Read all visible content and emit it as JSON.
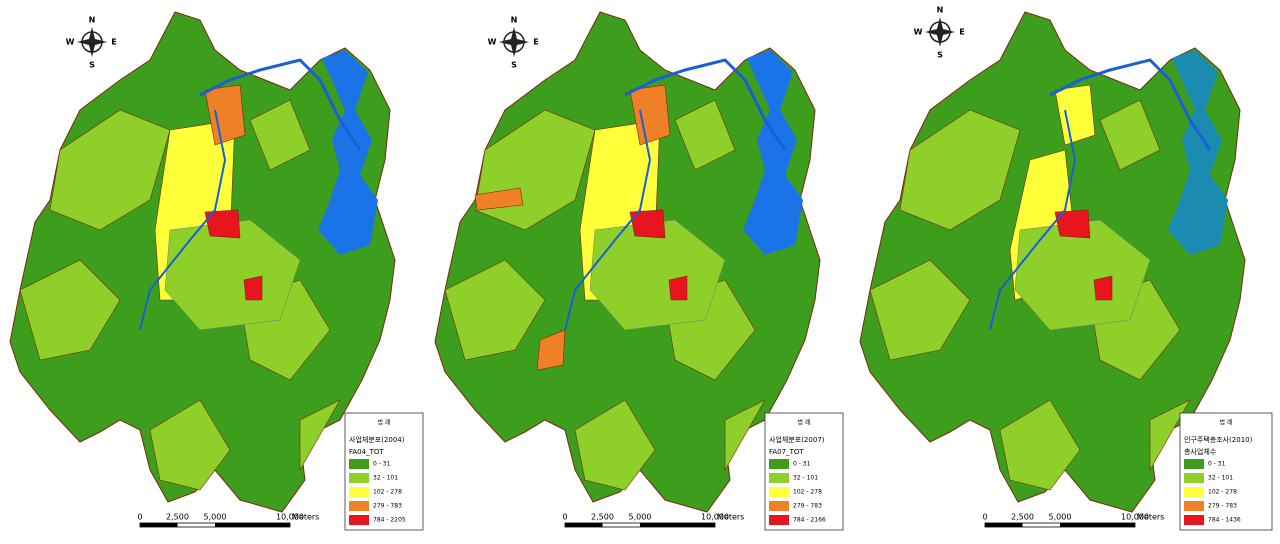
{
  "maps": [
    {
      "compass": {
        "n": "N",
        "s": "S",
        "e": "E",
        "w": "W"
      },
      "legend": {
        "header": "범 례",
        "title": [
          "사업체분포(2004)",
          "FA04_TOT"
        ],
        "classes": [
          {
            "label": "0 - 31",
            "color": "#3c9e1c"
          },
          {
            "label": "32 - 101",
            "color": "#8fcf2a"
          },
          {
            "label": "102 - 278",
            "color": "#ffff3a"
          },
          {
            "label": "279 - 783",
            "color": "#f08028"
          },
          {
            "label": "784 - 2205",
            "color": "#e8141e"
          }
        ]
      },
      "scale_bar": {
        "labels": [
          "0",
          "2,500",
          "5,000",
          "10,000"
        ],
        "unit": "Meters"
      }
    },
    {
      "compass": {
        "n": "N",
        "s": "S",
        "e": "E",
        "w": "W"
      },
      "legend": {
        "header": "범 례",
        "title": [
          "사업체분포(2007)",
          "FA07_TOT"
        ],
        "classes": [
          {
            "label": "0 - 31",
            "color": "#3c9e1c"
          },
          {
            "label": "32 - 101",
            "color": "#8fcf2a"
          },
          {
            "label": "102 - 278",
            "color": "#ffff3a"
          },
          {
            "label": "279 - 783",
            "color": "#f08028"
          },
          {
            "label": "784 - 2166",
            "color": "#e8141e"
          }
        ]
      },
      "scale_bar": {
        "labels": [
          "0",
          "2,500",
          "5,000",
          "10,000"
        ],
        "unit": "Meters"
      }
    },
    {
      "compass": {
        "n": "N",
        "s": "S",
        "e": "E",
        "w": "W"
      },
      "legend": {
        "header": "범 례",
        "title": [
          "인구주택총조사(2010)",
          "총사업체수"
        ],
        "classes": [
          {
            "label": "0 - 31",
            "color": "#3c9e1c"
          },
          {
            "label": "32 - 101",
            "color": "#8fcf2a"
          },
          {
            "label": "102 - 278",
            "color": "#ffff3a"
          },
          {
            "label": "279 - 783",
            "color": "#f08028"
          },
          {
            "label": "784 - 1436",
            "color": "#e8141e"
          }
        ]
      },
      "scale_bar": {
        "labels": [
          "0",
          "2,500",
          "5,000",
          "10,000"
        ],
        "unit": "Meters"
      }
    }
  ]
}
